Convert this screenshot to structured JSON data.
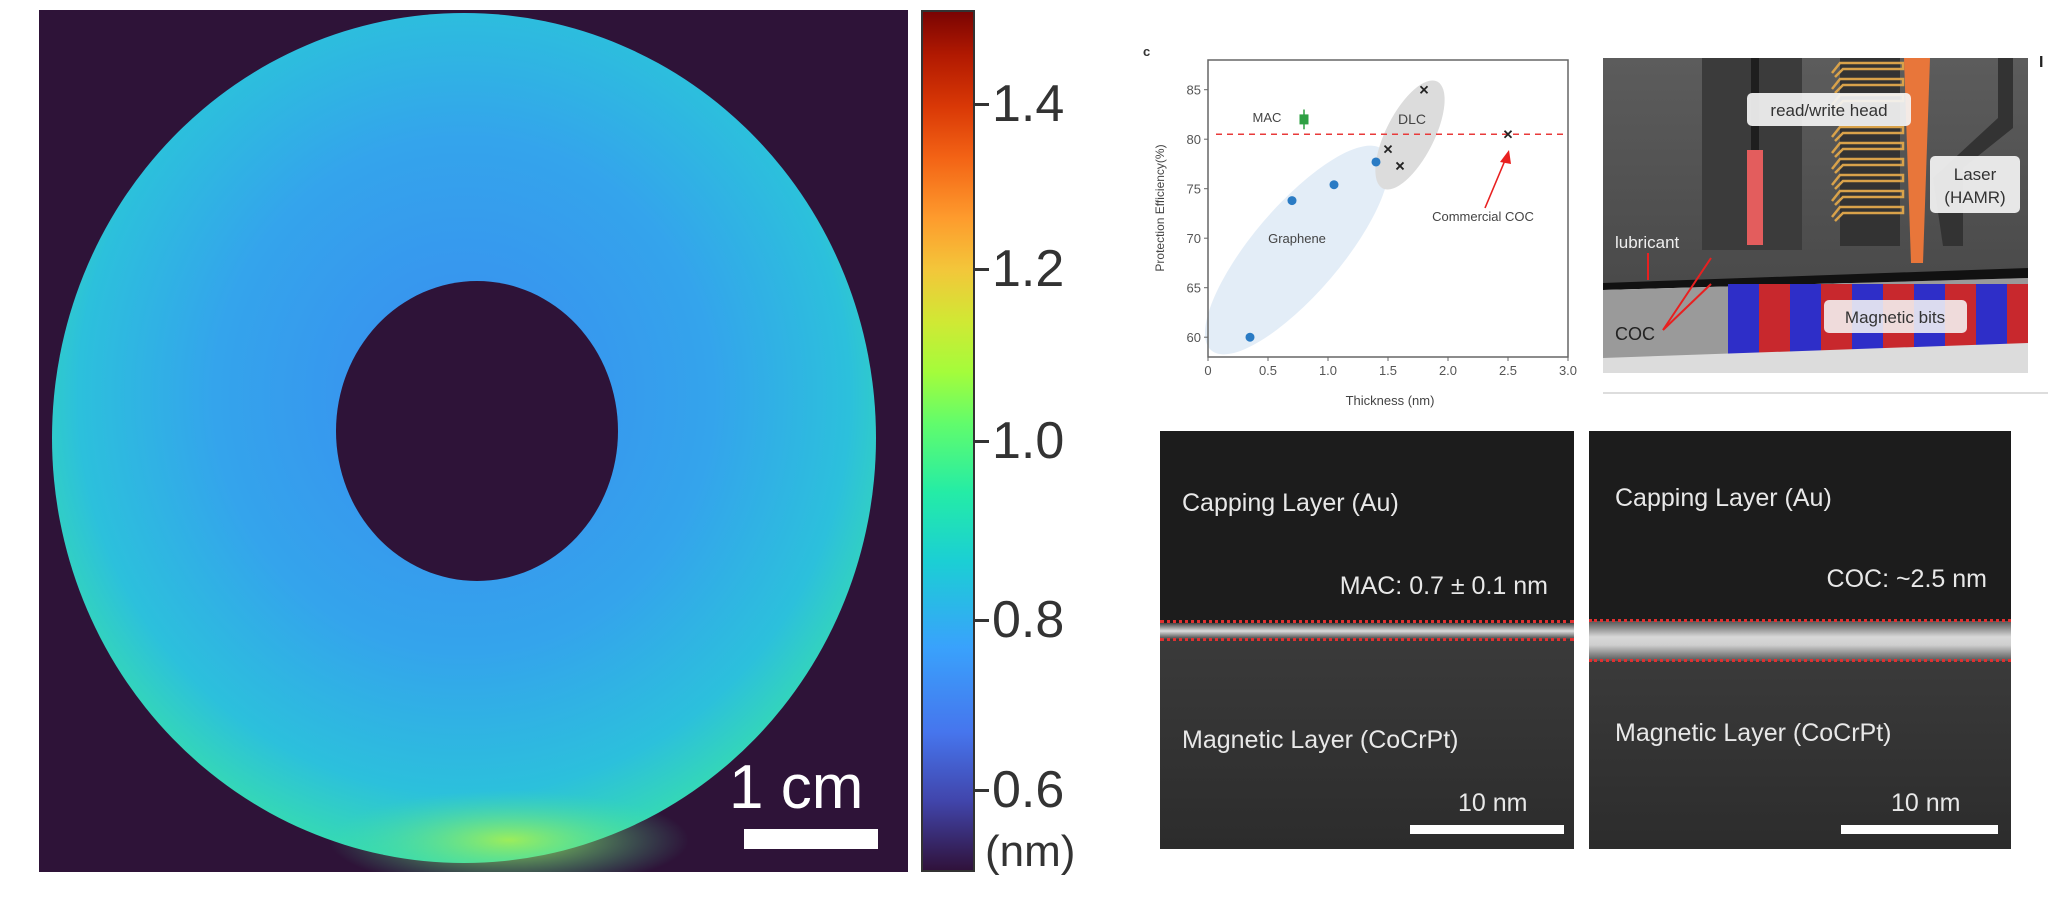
{
  "disk_map": {
    "scale_bar_label": "1 cm",
    "colorbar": {
      "ticks": [
        "1.4",
        "1.2",
        "1.0",
        "0.8",
        "0.6"
      ],
      "unit": "(nm)",
      "range": [
        0.5,
        1.5
      ],
      "colormap": "turbo"
    }
  },
  "chart_data": {
    "type": "scatter",
    "panel_label": "c",
    "xlabel": "Thickness (nm)",
    "ylabel": "Protection Efficiency(%)",
    "xlim": [
      0,
      3.0
    ],
    "ylim": [
      58,
      88
    ],
    "xticks": [
      "0",
      "0.5",
      "1.0",
      "1.5",
      "2.0",
      "2.5",
      "3.0"
    ],
    "yticks": [
      "60",
      "65",
      "70",
      "75",
      "80",
      "85"
    ],
    "grid": false,
    "reference_line": {
      "y": 80.5,
      "style": "dashed",
      "color": "#e83a3a"
    },
    "series": [
      {
        "name": "Graphene",
        "marker": "circle",
        "color": "#2a7bc4",
        "x": [
          0.35,
          0.7,
          1.05,
          1.4
        ],
        "y": [
          60,
          73.8,
          75.4,
          77.7
        ]
      },
      {
        "name": "DLC",
        "marker": "x",
        "color": "#222222",
        "x": [
          1.5,
          1.6,
          1.8
        ],
        "y": [
          79,
          77.3,
          85
        ]
      },
      {
        "name": "MAC",
        "marker": "square",
        "color": "#2ea043",
        "x": [
          0.8
        ],
        "y": [
          82
        ],
        "yerr": [
          1
        ]
      },
      {
        "name": "Commercial COC",
        "marker": "x",
        "color": "#222222",
        "x": [
          2.5
        ],
        "y": [
          80.5
        ]
      }
    ],
    "annotations": [
      "MAC",
      "DLC",
      "Graphene",
      "Commercial COC"
    ]
  },
  "schematic": {
    "labels": {
      "head": "read/write head",
      "laser": "Laser\n(HAMR)",
      "laser_line1": "Laser",
      "laser_line2": "(HAMR)",
      "lubricant": "lubricant",
      "coc": "COC",
      "bits": "Magnetic bits"
    },
    "corner_mark": "I"
  },
  "tem": [
    {
      "top_label": "Capping Layer (Au)",
      "thickness_label": "MAC: 0.7 ± 0.1 nm",
      "bottom_label": "Magnetic Layer (CoCrPt)",
      "scale_label": "10 nm"
    },
    {
      "top_label": "Capping Layer (Au)",
      "thickness_label": "COC: ~2.5 nm",
      "bottom_label": "Magnetic Layer (CoCrPt)",
      "scale_label": "10 nm"
    }
  ]
}
